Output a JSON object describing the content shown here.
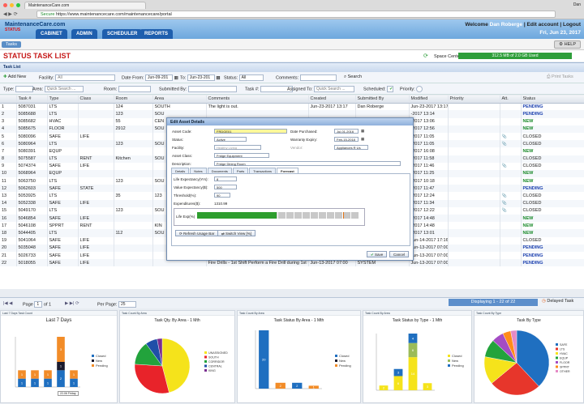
{
  "browser": {
    "tab_title": "MaintenanceCare.com",
    "secure_label": "Secure",
    "url": "https://www.maintenancecare.com/maintenancecare/portal",
    "user_initials": "Dan"
  },
  "header": {
    "logo": "MaintenanceCare.com",
    "logo_sub": "STATUS",
    "nav": [
      "CABINET",
      "ADMIN",
      "SCHEDULER",
      "REPORTS"
    ],
    "welcome_prefix": "Welcome",
    "welcome_name": "Dan Roberge",
    "edit_account": "Edit account",
    "logout": "Logout",
    "date": "Fri, Jun 23, 2017"
  },
  "toolbar": {
    "tasks": "Tasks",
    "help": "HELP"
  },
  "page": {
    "title": "STATUS TASK LIST",
    "space_label": "Space Center:",
    "space_value": "312.5 MB of 2.0 GB Used",
    "space_percent": 15
  },
  "panel": {
    "title": "Task List"
  },
  "filters": {
    "add_new": "Add New",
    "facility_label": "Facility:",
    "facility_value": "All",
    "date_from_label": "Date From:",
    "date_from_value": "Jun-09-201",
    "to_label": "To:",
    "to_value": "Jun-23-201",
    "status_label": "Status:",
    "status_value": "All",
    "comments_label": "Comments:",
    "search": "Search",
    "print": "Print Tasks",
    "type_label": "Type:",
    "area_label": "Area:",
    "area_placeholder": "Quick Search ...",
    "room_label": "Room:",
    "submitted_label": "Submitted By:",
    "tasknum_label": "Task #:",
    "assigned_label": "Assigned To:",
    "assigned_placeholder": "Quick Search ...",
    "scheduled_label": "Scheduled:",
    "priority_label": "Priority:"
  },
  "table": {
    "columns": [
      "",
      "Task #",
      "Type",
      "Class",
      "Room",
      "Area",
      "Comments",
      "Created",
      "Submitted By",
      "Modified",
      "Priority",
      "Att.",
      "Status"
    ],
    "rows": [
      [
        "1",
        "5087031",
        "LTS",
        "",
        "124",
        "SOUTH",
        "The light is out.",
        "Jun-23-2017 13:17",
        "Dan Roberge",
        "Jun-23-2017 13:17",
        "",
        "",
        "PENDING"
      ],
      [
        "2",
        "5085688",
        "LTS",
        "",
        "123",
        "SOU",
        "",
        "",
        "",
        "-2017 13:14",
        "",
        "",
        "PENDING"
      ],
      [
        "3",
        "5085682",
        "HVAC",
        "",
        "55",
        "CEN",
        "",
        "",
        "",
        "-2017 13:06",
        "",
        "",
        "NEW"
      ],
      [
        "4",
        "5085675",
        "FLOOR",
        "",
        "2912",
        "SOU",
        "",
        "",
        "",
        "-2017 12:56",
        "",
        "",
        "NEW"
      ],
      [
        "5",
        "5080096",
        "SAFE",
        "LIFE",
        "",
        "",
        "",
        "",
        "",
        "-2017 11:05",
        "",
        "clip",
        "CLOSED"
      ],
      [
        "6",
        "5080964",
        "LTS",
        "",
        "123",
        "SOU",
        "",
        "",
        "",
        "-2017 11:05",
        "",
        "clip",
        "CLOSED"
      ],
      [
        "7",
        "5080391",
        "EQUP",
        "",
        "",
        "",
        "",
        "",
        "",
        "-2017 16:08",
        "",
        "",
        "NEW"
      ],
      [
        "8",
        "5075587",
        "LTS",
        "RENT",
        "Kitchen",
        "SOU",
        "",
        "",
        "",
        "-2017 11:58",
        "",
        "",
        "CLOSED"
      ],
      [
        "9",
        "5074374",
        "SAFE",
        "LIFE",
        "",
        "",
        "",
        "",
        "",
        "-2017 11:46",
        "",
        "clip",
        "CLOSED"
      ],
      [
        "10",
        "5068964",
        "EQUP",
        "",
        "",
        "",
        "",
        "",
        "",
        "-2017 11:25",
        "",
        "",
        "NEW"
      ],
      [
        "11",
        "5063750",
        "LTS",
        "",
        "123",
        "SOU",
        "",
        "",
        "",
        "-2017 10:18",
        "",
        "",
        "NEW"
      ],
      [
        "12",
        "5062603",
        "SAFE",
        "STATE",
        "",
        "",
        "",
        "",
        "",
        "-2017 11:47",
        "",
        "",
        "PENDING"
      ],
      [
        "13",
        "5053925",
        "LTS",
        "",
        "35",
        "123",
        "",
        "",
        "",
        "-2017 12:24",
        "",
        "clip",
        "CLOSED"
      ],
      [
        "14",
        "5052338",
        "SAFE",
        "LIFE",
        "",
        "",
        "",
        "",
        "",
        "-2017 11:34",
        "",
        "clip",
        "CLOSED"
      ],
      [
        "15",
        "5049170",
        "LTS",
        "",
        "123",
        "SOU",
        "",
        "",
        "",
        "-2017 12:22",
        "",
        "clip",
        "CLOSED"
      ],
      [
        "16",
        "5046854",
        "SAFE",
        "LIFE",
        "",
        "",
        "",
        "",
        "",
        "-2017 14:48",
        "",
        "",
        "NEW"
      ],
      [
        "17",
        "5046108",
        "SPPRT",
        "RENT",
        "",
        "KIN",
        "",
        "",
        "",
        "-2017 14:48",
        "",
        "",
        "NEW"
      ],
      [
        "18",
        "5044405",
        "LTS",
        "",
        "112",
        "SOU",
        "",
        "",
        "",
        "-2017 13:01",
        "",
        "",
        "NEW"
      ],
      [
        "19",
        "5041064",
        "SAFE",
        "LIFE",
        "",
        "",
        "Fire Drills - 1st Shift Perform a Fire Drill during 1st S",
        "Jun-13-2017 07:00",
        "SYSTEM",
        "Jun-14-2017 17:16",
        "",
        "",
        "CLOSED"
      ],
      [
        "20",
        "5035048",
        "SAFE",
        "LIFE",
        "",
        "",
        "Fire Drills - 1st Shift Perform a Fire Drill during 1st S",
        "Jun-13-2017 07:00",
        "SYSTEM",
        "Jun-13-2017 07:00",
        "",
        "",
        "PENDING"
      ],
      [
        "21",
        "5026733",
        "SAFE",
        "LIFE",
        "",
        "",
        "Fire Drills - 1st Shift Perform a Fire Drill during 1st S",
        "Jun-13-2017 07:00",
        "SYSTEM",
        "Jun-13-2017 07:00",
        "",
        "",
        "PENDING"
      ],
      [
        "22",
        "5018055",
        "SAFE",
        "LIFE",
        "",
        "",
        "Fire Drills - 1st Shift Perform a Fire Drill during 1st S",
        "Jun-13-2017 07:00",
        "SYSTEM",
        "Jun-13-2017 07:00",
        "",
        "",
        "PENDING"
      ]
    ]
  },
  "pager": {
    "page_label": "Page",
    "page_value": "1",
    "of_label": "of 1",
    "per_page_label": "Per Page:",
    "per_page_value": "25",
    "displaying": "Displaying 1 - 22 of 22",
    "delayed": "Delayed Task"
  },
  "modal": {
    "title": "Edit Asset Details",
    "asset_code_label": "Asset Code:",
    "asset_code_value": "FRDGE01",
    "status_label": "Status:",
    "status_value": "Active",
    "facility_label": "Facility:",
    "facility_value": "Healthy Living",
    "asset_class_label": "Asset Class:",
    "asset_class_value": "Fridge Equipment",
    "description_label": "Description:",
    "description_value": "Fridge Dining Room",
    "date_purchased_label": "Date Purchased:",
    "date_purchased_value": "Jul-01-2016",
    "warranty_label": "Warranty Expiry:",
    "warranty_value": "Feb-15-2018",
    "vendor_label": "Vendor:",
    "vendor_value": "Appliances R Us",
    "tabs": [
      "Details",
      "Notes",
      "Documents",
      "Parts",
      "Transactions",
      "Forecast"
    ],
    "life_exp_label": "Life Expectancy(Yrs):",
    "life_exp_value": "8",
    "value_exp_label": "Value Expectancy($):",
    "value_exp_value": "500",
    "threshold_label": "Threshold(%):",
    "threshold_value": "90",
    "expenditures_label": "Expenditures($):",
    "expenditures_value": "1310.99",
    "life_exp_pct_label": "Life Exp(%)",
    "life_exp_pct": 49,
    "threshold_pct": 90,
    "refresh_btn": "Refresh Usage Bar",
    "switch_btn": "Switch View [%]",
    "save_btn": "Save",
    "cancel_btn": "Cancel"
  },
  "charts": [
    {
      "head": "Last 7 Days Task Count",
      "title": "Last 7 Days",
      "tooltip": "22-06 Friday"
    },
    {
      "head": "Task Count By Area",
      "title": "Task Qty. By Area - 1 Mth"
    },
    {
      "head": "Task Count By Area",
      "title": "Task Status By Area - 1 Mth"
    },
    {
      "head": "Task Count By Area",
      "title": "Task Status by Type - 1 Mth"
    },
    {
      "head": "Task Count By Type",
      "title": "Task By Type"
    }
  ],
  "chart_data": [
    {
      "type": "bar",
      "title": "Last 7 Days",
      "series": [
        {
          "name": "Closed",
          "color": "#1f6fc0"
        },
        {
          "name": "New",
          "color": "#1a1a2e"
        },
        {
          "name": "Pending",
          "color": "#f28c28"
        }
      ],
      "bars": [
        {
          "segments": [
            {
              "series": "Closed",
              "value": 1
            },
            {
              "series": "Pending",
              "value": 1
            }
          ]
        },
        {
          "segments": [
            {
              "series": "Closed",
              "value": 1
            },
            {
              "series": "Pending",
              "value": 1
            }
          ]
        },
        {
          "segments": [
            {
              "series": "Closed",
              "value": 1
            },
            {
              "series": "Pending",
              "value": 1
            }
          ]
        },
        {
          "segments": [
            {
              "series": "Closed",
              "value": 2
            },
            {
              "series": "New",
              "value": 1
            },
            {
              "series": "Pending",
              "value": 3
            }
          ]
        },
        {
          "segments": [
            {
              "series": "Closed",
              "value": 1
            },
            {
              "series": "Pending",
              "value": 1
            }
          ]
        }
      ]
    },
    {
      "type": "pie",
      "title": "Task Qty. By Area - 1 Mth",
      "labels": [
        "UNASSIGNED",
        "SOUTH",
        "CORRIDOR",
        "CENTRAL",
        "KING"
      ],
      "values": [
        46,
        30,
        14,
        7,
        3
      ],
      "colors": [
        "#f5e31b",
        "#e8232a",
        "#22a33c",
        "#1f4fa8",
        "#7a2d90"
      ]
    },
    {
      "type": "bar",
      "title": "Task Status By Area - 1 Mth",
      "series": [
        {
          "name": "Closed",
          "color": "#1f6fc0"
        },
        {
          "name": "New",
          "color": "#1a1a2e"
        },
        {
          "name": "Pending",
          "color": "#f28c28"
        }
      ],
      "bars": [
        {
          "segments": [
            {
              "series": "Closed",
              "value": 20
            }
          ]
        },
        {
          "segments": [
            {
              "series": "Pending",
              "value": 2
            }
          ]
        },
        {
          "segments": [
            {
              "series": "Closed",
              "value": 2
            }
          ]
        },
        {
          "segments": [
            {
              "series": "Pending",
              "value": 1
            }
          ]
        }
      ]
    },
    {
      "type": "bar",
      "title": "Task Status by Type - 1 Mth",
      "series": [
        {
          "name": "Closed",
          "color": "#f5e31b"
        },
        {
          "name": "New",
          "color": "#9bbb59"
        },
        {
          "name": "Pending",
          "color": "#1f6fc0"
        }
      ],
      "bars": [
        {
          "segments": [
            {
              "series": "Closed",
              "value": 2
            }
          ]
        },
        {
          "segments": [
            {
              "series": "Closed",
              "value": 6
            },
            {
              "series": "Pending",
              "value": 3
            }
          ]
        },
        {
          "segments": [
            {
              "series": "Closed",
              "value": 14
            },
            {
              "series": "New",
              "value": 6
            },
            {
              "series": "Pending",
              "value": 4
            }
          ]
        },
        {
          "segments": [
            {
              "series": "Closed",
              "value": 3
            }
          ]
        }
      ]
    },
    {
      "type": "pie",
      "title": "Task By Type",
      "labels": [
        "SAFE",
        "LTS",
        "HVAC",
        "EQUP",
        "FLOOR",
        "SPPRT",
        "OTHER"
      ],
      "values": [
        38,
        26,
        14,
        9,
        6,
        4,
        3
      ],
      "colors": [
        "#1f6fc0",
        "#e7362b",
        "#f5e31b",
        "#22a33c",
        "#a44cc4",
        "#ff8c1a",
        "#e68ac6"
      ]
    }
  ]
}
